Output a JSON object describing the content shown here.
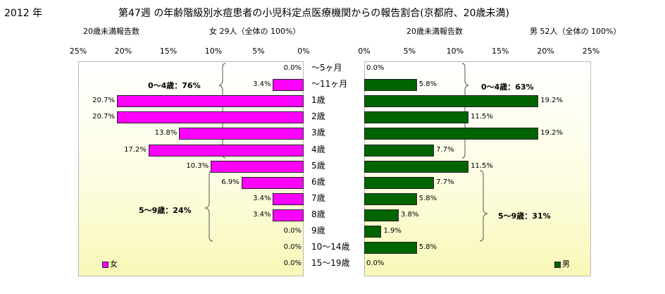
{
  "title": {
    "year": "2012 年",
    "main": "第47週 の年齢階級別水痘患者の小児科定点医療機関からの報告割合(京都府、20歳未満)"
  },
  "chart_data": [
    {
      "type": "bar",
      "orientation": "horizontal",
      "series_name": "女",
      "subtitle_left": "20歳未満報告数",
      "subtitle_right": "女  29人（全体の  100%）",
      "xlim": [
        0,
        25
      ],
      "x_reversed": true,
      "ticks": [
        "25%",
        "20%",
        "15%",
        "10%",
        "5%",
        "0%"
      ],
      "categories": [
        "～5ヶ月",
        "～11ヶ月",
        "1歳",
        "2歳",
        "3歳",
        "4歳",
        "5歳",
        "6歳",
        "7歳",
        "8歳",
        "9歳",
        "10～14歳",
        "15～19歳"
      ],
      "values": [
        0.0,
        3.4,
        20.7,
        20.7,
        13.8,
        17.2,
        10.3,
        6.9,
        3.4,
        3.4,
        0.0,
        0.0,
        0.0
      ],
      "labels": [
        "0.0%",
        "3.4%",
        "20.7%",
        "20.7%",
        "13.8%",
        "17.2%",
        "10.3%",
        "6.9%",
        "3.4%",
        "3.4%",
        "0.0%",
        "0.0%",
        "0.0%"
      ],
      "annotations": [
        "0～4歳：76%",
        "5～9歳：24%"
      ],
      "legend": "女",
      "color": "#ff00ff"
    },
    {
      "type": "bar",
      "orientation": "horizontal",
      "series_name": "男",
      "subtitle_left": "20歳未満報告数",
      "subtitle_right": "男  52人（全体の  100%）",
      "xlim": [
        0,
        25
      ],
      "x_reversed": false,
      "ticks": [
        "0%",
        "5%",
        "10%",
        "15%",
        "20%",
        "25%"
      ],
      "categories": [
        "～5ヶ月",
        "～11ヶ月",
        "1歳",
        "2歳",
        "3歳",
        "4歳",
        "5歳",
        "6歳",
        "7歳",
        "8歳",
        "9歳",
        "10～14歳",
        "15～19歳"
      ],
      "values": [
        0.0,
        5.8,
        19.2,
        11.5,
        19.2,
        7.7,
        11.5,
        7.7,
        5.8,
        3.8,
        1.9,
        5.8,
        0.0
      ],
      "labels": [
        "0.0%",
        "5.8%",
        "19.2%",
        "11.5%",
        "19.2%",
        "7.7%",
        "11.5%",
        "7.7%",
        "5.8%",
        "3.8%",
        "1.9%",
        "5.8%",
        "0.0%"
      ],
      "annotations": [
        "0～4歳：63%",
        "5～9歳：31%"
      ],
      "legend": "男",
      "color": "#006400"
    }
  ]
}
